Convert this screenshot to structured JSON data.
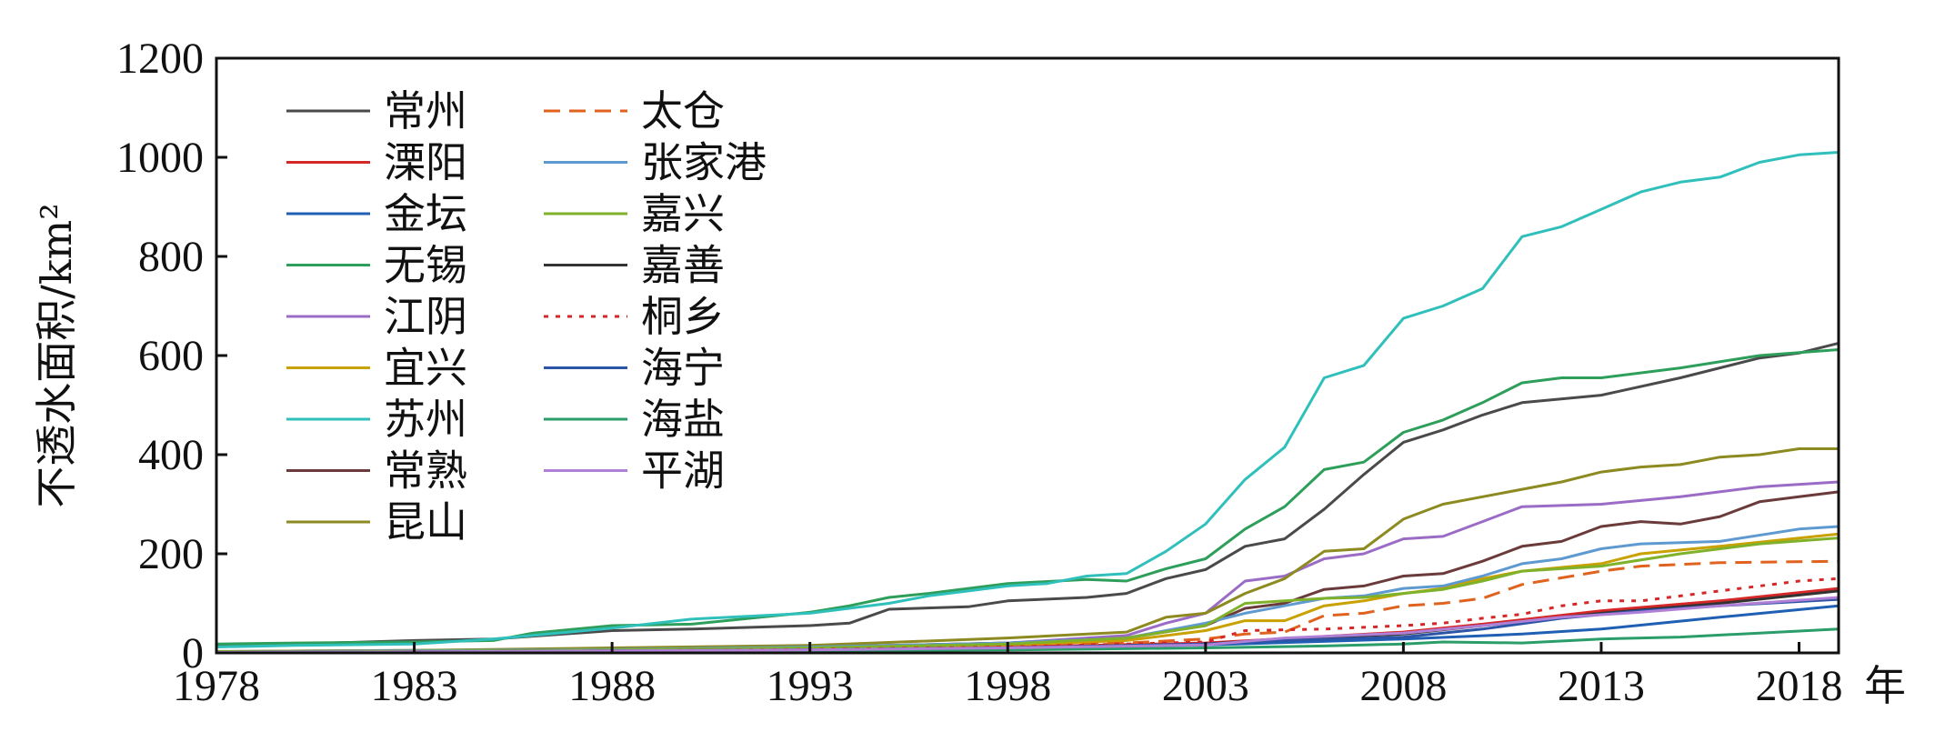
{
  "chart_data": {
    "type": "line",
    "title": "",
    "xlabel": "年",
    "ylabel": "不透水面积/km²",
    "xlim": [
      1978,
      2019
    ],
    "ylim": [
      0,
      1200
    ],
    "xticks": [
      1978,
      1983,
      1988,
      1993,
      1998,
      2003,
      2008,
      2013,
      2018
    ],
    "yticks": [
      0,
      200,
      400,
      600,
      800,
      1000,
      1200
    ],
    "grid": false,
    "legend_position": "top-left",
    "series": [
      {
        "name": "常州",
        "color": "#4a4a4a",
        "dash": "solid",
        "x": [
          1978,
          1980,
          1983,
          1985,
          1988,
          1990,
          1993,
          1994,
          1995,
          1997,
          1998,
          2000,
          2001,
          2002,
          2003,
          2004,
          2005,
          2006,
          2007,
          2008,
          2009,
          2010,
          2011,
          2013,
          2015,
          2017,
          2018,
          2019
        ],
        "y": [
          15,
          18,
          25,
          28,
          45,
          48,
          55,
          60,
          88,
          93,
          105,
          112,
          120,
          150,
          168,
          215,
          230,
          290,
          360,
          425,
          450,
          480,
          505,
          520,
          555,
          595,
          605,
          625
        ]
      },
      {
        "name": "溧阳",
        "color": "#d62728",
        "dash": "solid",
        "x": [
          1978,
          1983,
          1988,
          1993,
          1998,
          2003,
          2008,
          2010,
          2013,
          2016,
          2019
        ],
        "y": [
          2,
          3,
          5,
          8,
          12,
          20,
          42,
          58,
          85,
          105,
          130
        ]
      },
      {
        "name": "金坛",
        "color": "#1f5fb4",
        "dash": "solid",
        "x": [
          1978,
          1983,
          1988,
          1993,
          1998,
          2003,
          2008,
          2011,
          2013,
          2016,
          2019
        ],
        "y": [
          2,
          3,
          4,
          6,
          10,
          16,
          28,
          38,
          48,
          72,
          95
        ]
      },
      {
        "name": "无锡",
        "color": "#2e9e5b",
        "dash": "solid",
        "x": [
          1978,
          1980,
          1983,
          1985,
          1986,
          1988,
          1990,
          1993,
          1994,
          1995,
          1996,
          1998,
          2000,
          2001,
          2002,
          2003,
          2004,
          2005,
          2006,
          2007,
          2008,
          2009,
          2010,
          2011,
          2012,
          2013,
          2015,
          2017,
          2019
        ],
        "y": [
          18,
          20,
          22,
          25,
          40,
          55,
          58,
          82,
          95,
          112,
          120,
          140,
          148,
          145,
          170,
          190,
          250,
          295,
          370,
          385,
          445,
          470,
          505,
          545,
          555,
          555,
          575,
          600,
          612
        ]
      },
      {
        "name": "江阴",
        "color": "#9b6cc6",
        "dash": "solid",
        "x": [
          1978,
          1983,
          1988,
          1993,
          1998,
          2001,
          2002,
          2003,
          2004,
          2005,
          2006,
          2007,
          2008,
          2009,
          2010,
          2011,
          2013,
          2015,
          2017,
          2019
        ],
        "y": [
          3,
          5,
          8,
          12,
          20,
          35,
          60,
          80,
          145,
          155,
          190,
          200,
          230,
          235,
          265,
          295,
          300,
          315,
          335,
          345
        ]
      },
      {
        "name": "宜兴",
        "color": "#c9a100",
        "dash": "solid",
        "x": [
          1978,
          1983,
          1988,
          1993,
          1998,
          2001,
          2003,
          2004,
          2005,
          2006,
          2007,
          2008,
          2009,
          2010,
          2011,
          2013,
          2014,
          2016,
          2019
        ],
        "y": [
          2,
          4,
          7,
          10,
          16,
          25,
          45,
          65,
          65,
          95,
          105,
          120,
          130,
          150,
          165,
          180,
          200,
          215,
          240
        ]
      },
      {
        "name": "苏州",
        "color": "#30c0bc",
        "dash": "solid",
        "x": [
          1978,
          1980,
          1983,
          1985,
          1988,
          1990,
          1993,
          1995,
          1996,
          1997,
          1998,
          1999,
          2000,
          2001,
          2002,
          2003,
          2004,
          2005,
          2006,
          2007,
          2008,
          2009,
          2010,
          2011,
          2012,
          2013,
          2014,
          2015,
          2016,
          2017,
          2018,
          2019
        ],
        "y": [
          12,
          15,
          18,
          28,
          50,
          68,
          80,
          100,
          115,
          125,
          135,
          140,
          155,
          160,
          205,
          260,
          350,
          415,
          555,
          580,
          675,
          700,
          735,
          840,
          860,
          895,
          930,
          950,
          960,
          990,
          1005,
          1010
        ]
      },
      {
        "name": "常熟",
        "color": "#6b3a3a",
        "dash": "solid",
        "x": [
          1978,
          1983,
          1988,
          1993,
          1998,
          2001,
          2003,
          2004,
          2005,
          2006,
          2007,
          2008,
          2009,
          2010,
          2011,
          2012,
          2013,
          2014,
          2015,
          2016,
          2017,
          2018,
          2019
        ],
        "y": [
          2,
          4,
          7,
          12,
          20,
          30,
          55,
          90,
          100,
          128,
          135,
          155,
          160,
          185,
          215,
          225,
          255,
          265,
          260,
          275,
          305,
          315,
          325
        ]
      },
      {
        "name": "昆山",
        "color": "#8c8a20",
        "dash": "solid",
        "x": [
          1978,
          1983,
          1988,
          1993,
          1998,
          2001,
          2002,
          2003,
          2004,
          2005,
          2006,
          2007,
          2008,
          2009,
          2010,
          2011,
          2012,
          2013,
          2014,
          2015,
          2016,
          2017,
          2018,
          2019
        ],
        "y": [
          3,
          5,
          10,
          15,
          30,
          42,
          72,
          80,
          120,
          150,
          205,
          210,
          270,
          300,
          315,
          330,
          345,
          365,
          375,
          380,
          395,
          400,
          412,
          412
        ]
      },
      {
        "name": "太仓",
        "color": "#e0621f",
        "dash": "dash",
        "x": [
          1978,
          1983,
          1988,
          1993,
          1998,
          2001,
          2003,
          2004,
          2005,
          2006,
          2007,
          2008,
          2009,
          2010,
          2011,
          2013,
          2014,
          2016,
          2019
        ],
        "y": [
          1,
          2,
          4,
          7,
          12,
          20,
          28,
          38,
          42,
          75,
          80,
          95,
          100,
          110,
          138,
          165,
          175,
          182,
          185
        ]
      },
      {
        "name": "张家港",
        "color": "#5e9ad0",
        "dash": "solid",
        "x": [
          1978,
          1983,
          1988,
          1993,
          1998,
          2001,
          2003,
          2004,
          2005,
          2006,
          2007,
          2008,
          2009,
          2010,
          2011,
          2012,
          2013,
          2014,
          2016,
          2018,
          2019
        ],
        "y": [
          2,
          4,
          7,
          12,
          20,
          30,
          60,
          80,
          95,
          110,
          115,
          130,
          135,
          155,
          180,
          190,
          210,
          220,
          225,
          250,
          255
        ]
      },
      {
        "name": "嘉兴",
        "color": "#7fb22a",
        "dash": "solid",
        "x": [
          1978,
          1983,
          1988,
          1993,
          1998,
          2001,
          2003,
          2004,
          2005,
          2006,
          2007,
          2008,
          2009,
          2010,
          2011,
          2013,
          2015,
          2017,
          2019
        ],
        "y": [
          2,
          3,
          6,
          10,
          18,
          30,
          55,
          100,
          105,
          110,
          112,
          120,
          128,
          145,
          165,
          175,
          200,
          220,
          232
        ]
      },
      {
        "name": "嘉善",
        "color": "#333333",
        "dash": "solid",
        "x": [
          1978,
          1983,
          1988,
          1993,
          1998,
          2003,
          2005,
          2008,
          2010,
          2013,
          2016,
          2019
        ],
        "y": [
          1,
          2,
          4,
          6,
          10,
          18,
          28,
          38,
          55,
          80,
          100,
          125
        ]
      },
      {
        "name": "桐乡",
        "color": "#d62728",
        "dash": "dot",
        "x": [
          1978,
          1983,
          1988,
          1993,
          1998,
          2003,
          2004,
          2006,
          2008,
          2009,
          2010,
          2011,
          2012,
          2013,
          2014,
          2016,
          2018,
          2019
        ],
        "y": [
          1,
          2,
          4,
          7,
          12,
          22,
          45,
          48,
          55,
          60,
          70,
          78,
          95,
          105,
          105,
          125,
          145,
          150
        ]
      },
      {
        "name": "海宁",
        "color": "#2c55a8",
        "dash": "solid",
        "x": [
          1978,
          1983,
          1988,
          1993,
          1998,
          2003,
          2005,
          2008,
          2010,
          2012,
          2014,
          2016,
          2019
        ],
        "y": [
          1,
          2,
          4,
          6,
          10,
          18,
          25,
          32,
          48,
          70,
          85,
          95,
          108
        ]
      },
      {
        "name": "海盐",
        "color": "#2a9d6a",
        "dash": "solid",
        "x": [
          1978,
          1983,
          1988,
          1993,
          1998,
          2003,
          2006,
          2008,
          2009,
          2011,
          2013,
          2015,
          2017,
          2019
        ],
        "y": [
          1,
          1,
          2,
          4,
          6,
          10,
          14,
          18,
          22,
          20,
          28,
          32,
          40,
          48
        ]
      },
      {
        "name": "平湖",
        "color": "#b07fd6",
        "dash": "solid",
        "x": [
          1978,
          1983,
          1988,
          1993,
          1998,
          2003,
          2005,
          2008,
          2010,
          2012,
          2014,
          2016,
          2019
        ],
        "y": [
          1,
          2,
          4,
          6,
          10,
          16,
          30,
          40,
          55,
          72,
          82,
          95,
          112
        ]
      }
    ]
  }
}
